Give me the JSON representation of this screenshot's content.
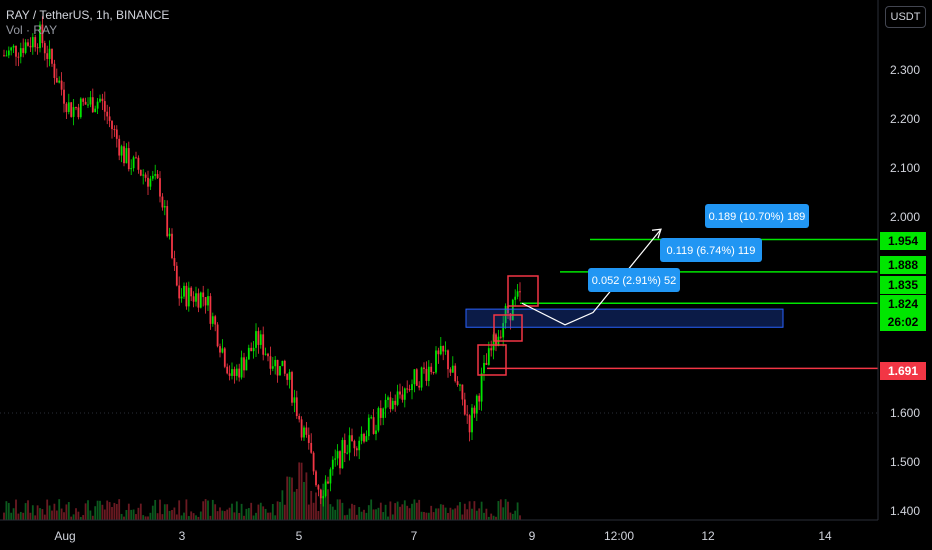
{
  "header": {
    "symbol_line": "RAY / TetherUS, 1h, BINANCE",
    "volume_line": "Vol · RAY"
  },
  "price_scale": {
    "unit": "USDT",
    "ticks": [
      "2.300",
      "2.200",
      "2.100",
      "2.000",
      "1.600",
      "1.500",
      "1.400"
    ]
  },
  "time_scale": {
    "ticks": [
      "Aug",
      "3",
      "5",
      "7",
      "9",
      "12:00",
      "12",
      "14"
    ]
  },
  "price_tags": [
    {
      "value": "1.954",
      "color": "#00e600",
      "text_color": "#000000"
    },
    {
      "value": "1.888",
      "color": "#00e600",
      "text_color": "#000000"
    },
    {
      "value": "1.835",
      "color": "#00e600",
      "text_color": "#000000"
    },
    {
      "value": "1.824",
      "color": "#00e600",
      "text_color": "#000000"
    },
    {
      "value": "26:02",
      "color": "#00e600",
      "text_color": "#000000"
    },
    {
      "value": "1.691",
      "color": "#f23645",
      "text_color": "#ffffff"
    }
  ],
  "measure_labels": [
    {
      "text": "0.189 (10.70%) 189"
    },
    {
      "text": "0.119 (6.74%) 119"
    },
    {
      "text": "0.052 (2.91%) 52"
    }
  ],
  "chart_data": {
    "type": "candlestick",
    "symbol": "RAY / TetherUS",
    "interval": "1h",
    "exchange": "BINANCE",
    "y_unit": "USDT",
    "ylim": [
      1.39,
      2.39
    ],
    "x_ticks": [
      "Aug",
      "3",
      "5",
      "7",
      "9",
      "12:00",
      "12",
      "14"
    ],
    "price_path": [
      {
        "x": "Aug 1",
        "y": 2.33
      },
      {
        "x": "Aug 1",
        "y": 2.37
      },
      {
        "x": "Aug 2",
        "y": 2.22
      },
      {
        "x": "Aug 2",
        "y": 2.24
      },
      {
        "x": "Aug 3",
        "y": 2.12
      },
      {
        "x": "Aug 3",
        "y": 2.06
      },
      {
        "x": "Aug 3",
        "y": 1.84
      },
      {
        "x": "Aug 4",
        "y": 1.84
      },
      {
        "x": "Aug 4",
        "y": 1.67
      },
      {
        "x": "Aug 4",
        "y": 1.75
      },
      {
        "x": "Aug 5",
        "y": 1.66
      },
      {
        "x": "Aug 5",
        "y": 1.44
      },
      {
        "x": "Aug 6",
        "y": 1.53
      },
      {
        "x": "Aug 6",
        "y": 1.57
      },
      {
        "x": "Aug 7",
        "y": 1.66
      },
      {
        "x": "Aug 7",
        "y": 1.72
      },
      {
        "x": "Aug 8",
        "y": 1.58
      },
      {
        "x": "Aug 8",
        "y": 1.69
      },
      {
        "x": "Aug 8",
        "y": 1.8
      },
      {
        "x": "Aug 9",
        "y": 1.835
      }
    ],
    "horizontal_lines": [
      {
        "value": 1.954,
        "color": "#00e600"
      },
      {
        "value": 1.888,
        "color": "#00e600"
      },
      {
        "value": 1.824,
        "color": "#00e600"
      },
      {
        "value": 1.691,
        "color": "#f23645"
      }
    ],
    "support_zone": {
      "low": 1.775,
      "high": 1.812,
      "color": "#2962ff"
    },
    "projection_path": [
      1.824,
      1.78,
      1.805,
      1.975
    ],
    "grid": false
  }
}
